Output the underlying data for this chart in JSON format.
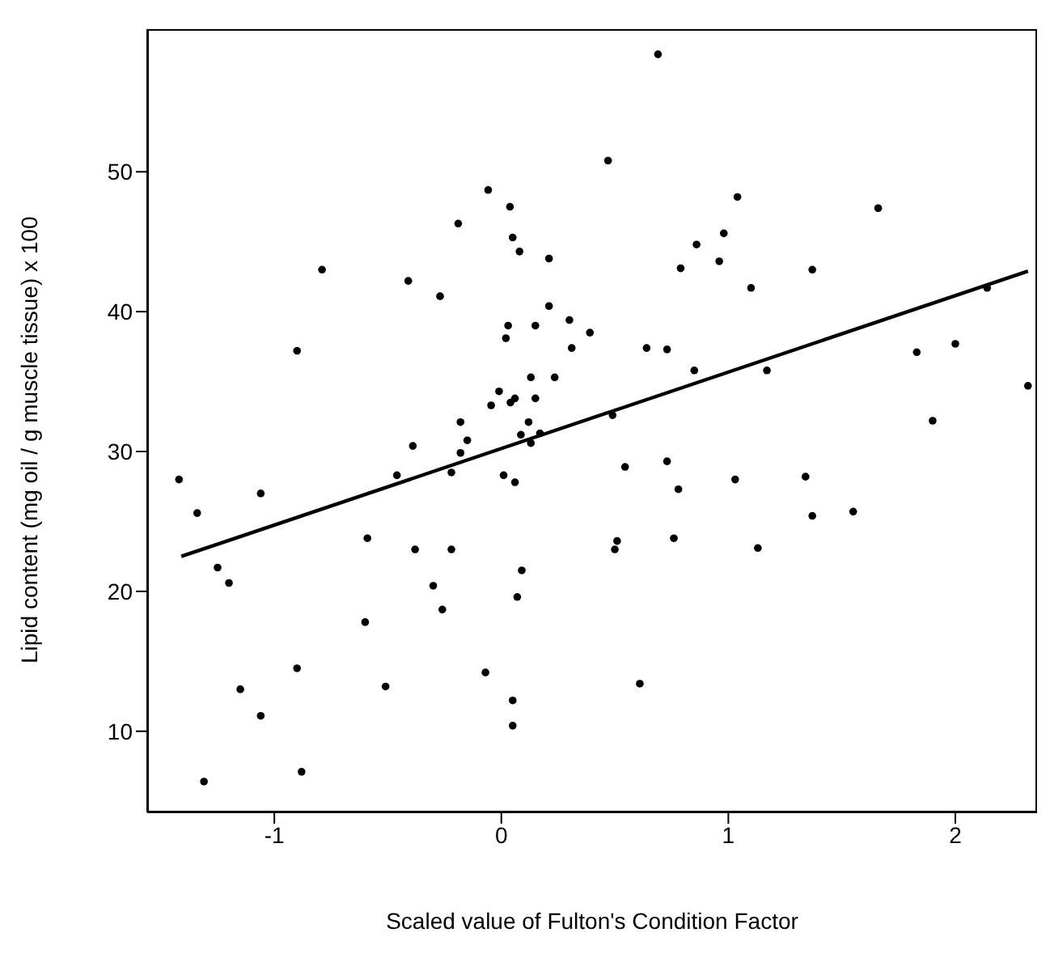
{
  "chart_data": {
    "type": "scatter",
    "xlabel": "Scaled value of Fulton's Condition Factor",
    "ylabel": "Lipid content (mg oil / g muscle tissue) x 100",
    "xlim": [
      -1.56,
      2.36
    ],
    "ylim": [
      4.2,
      60.2
    ],
    "xticks": [
      -1,
      0,
      1,
      2
    ],
    "yticks": [
      10,
      20,
      30,
      40,
      50
    ],
    "marker": "circle",
    "legend": false,
    "grid": false,
    "series": [
      {
        "type": "scatter",
        "color": "#000000",
        "x": [
          -0.058,
          0.038,
          -0.19,
          0.05,
          0.08,
          0.21,
          -0.79,
          -0.41,
          -0.27,
          0.21,
          0.3,
          0.03,
          0.15,
          0.39,
          0.02,
          0.31,
          -0.9,
          0.13,
          0.235,
          -0.01,
          -0.045,
          0.04,
          0.06,
          0.15,
          -0.18,
          0.12,
          -0.15,
          -0.39,
          0.086,
          0.13,
          0.17,
          -0.18,
          0.69,
          0.47,
          1.04,
          1.66,
          0.98,
          0.86,
          0.96,
          0.79,
          1.37,
          1.1,
          2.14,
          0.64,
          0.73,
          1.83,
          2.0,
          0.85,
          1.17,
          2.32,
          0.49,
          1.9,
          0.545,
          0.73,
          -1.42,
          -1.34,
          -1.06,
          -0.46,
          -0.22,
          0.01,
          0.06,
          -1.25,
          -1.2,
          -0.59,
          -0.38,
          -0.22,
          -0.3,
          -0.26,
          0.09,
          0.07,
          -0.6,
          -0.9,
          -1.15,
          -1.06,
          -0.51,
          -0.07,
          0.05,
          0.05,
          -1.31,
          -0.88,
          0.78,
          1.03,
          1.34,
          1.37,
          1.55,
          0.51,
          0.5,
          0.76,
          1.13,
          0.61
        ],
        "values": [
          48.7,
          47.5,
          46.3,
          45.3,
          44.3,
          43.8,
          43.0,
          42.2,
          41.1,
          40.4,
          39.4,
          39.0,
          39.0,
          38.5,
          38.1,
          37.4,
          37.2,
          35.3,
          35.3,
          34.3,
          33.3,
          33.5,
          33.8,
          33.8,
          32.1,
          32.1,
          30.8,
          30.4,
          31.2,
          30.6,
          31.3,
          29.9,
          58.4,
          50.8,
          48.2,
          47.4,
          45.6,
          44.8,
          43.6,
          43.1,
          43.0,
          41.7,
          41.7,
          37.4,
          37.3,
          37.1,
          37.7,
          35.8,
          35.8,
          34.7,
          32.6,
          32.2,
          28.9,
          29.3,
          28.0,
          25.6,
          27.0,
          28.3,
          28.5,
          28.3,
          27.8,
          21.7,
          20.6,
          23.8,
          23.0,
          23.0,
          20.4,
          18.7,
          21.5,
          19.6,
          17.8,
          14.5,
          13.0,
          11.1,
          13.2,
          14.2,
          12.2,
          10.4,
          6.4,
          7.1,
          27.3,
          28.0,
          28.2,
          25.4,
          25.7,
          23.6,
          23.0,
          23.8,
          23.1,
          13.4
        ]
      },
      {
        "type": "line",
        "marker": "none",
        "color": "#000000",
        "x": [
          -1.41,
          2.32
        ],
        "values": [
          22.5,
          42.9
        ]
      }
    ]
  }
}
